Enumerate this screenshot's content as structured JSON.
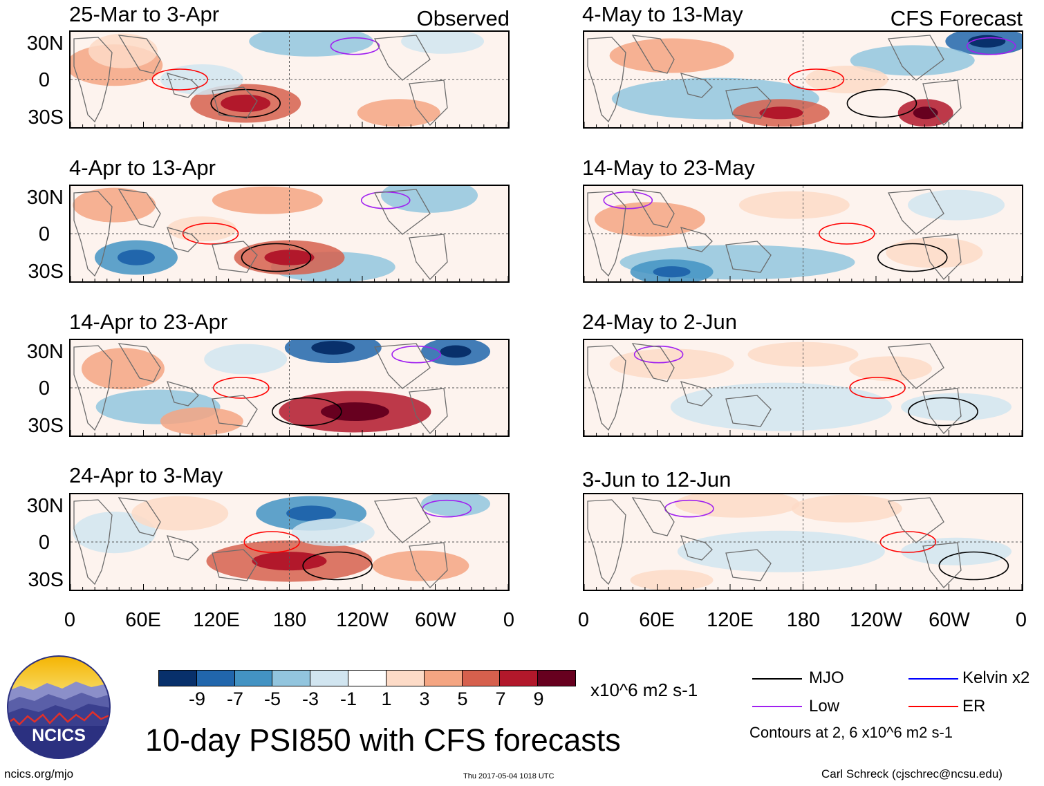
{
  "chart_data": {
    "type": "heatmap",
    "title": "10-day PSI850 with CFS forecasts",
    "variable": "PSI850 anomaly",
    "units": "x10^6 m2 s-1",
    "columns": [
      {
        "label": "Observed",
        "panels": [
          "25-Mar to 3-Apr",
          "4-Apr to 13-Apr",
          "14-Apr to 23-Apr",
          "24-Apr to 3-May"
        ]
      },
      {
        "label": "CFS Forecast",
        "panels": [
          "4-May to 13-May",
          "14-May to 23-May",
          "24-May to 2-Jun",
          "3-Jun to 12-Jun"
        ]
      }
    ],
    "lat_ticks": [
      "30N",
      "0",
      "30S"
    ],
    "lon_ticks": [
      "0",
      "60E",
      "120E",
      "180",
      "120W",
      "60W",
      "0"
    ],
    "ylim": [
      -40,
      40
    ],
    "xlim": [
      0,
      360
    ],
    "colorbar": {
      "ticks": [
        "-9",
        "-7",
        "-5",
        "-3",
        "-1",
        "1",
        "3",
        "5",
        "7",
        "9"
      ],
      "colors": [
        "#08306b",
        "#2166ac",
        "#4393c3",
        "#92c5de",
        "#d1e5f0",
        "#ffffff",
        "#fddbc7",
        "#f4a582",
        "#d6604d",
        "#b2182b",
        "#67001f"
      ]
    },
    "legend": [
      {
        "label": "MJO",
        "color": "#000000"
      },
      {
        "label": "Kelvin x2",
        "color": "#0000ff"
      },
      {
        "label": "Low",
        "color": "#a020f0"
      },
      {
        "label": "ER",
        "color": "#ff0000"
      }
    ],
    "contour_note": "Contours at 2, 6 x10^6 m2 s-1"
  },
  "footer": {
    "url": "ncics.org/mjo",
    "timestamp": "Thu 2017-05-04 1018 UTC",
    "author": "Carl Schreck (cjschrec@ncsu.edu)"
  },
  "logo": {
    "text": "NCICS"
  }
}
